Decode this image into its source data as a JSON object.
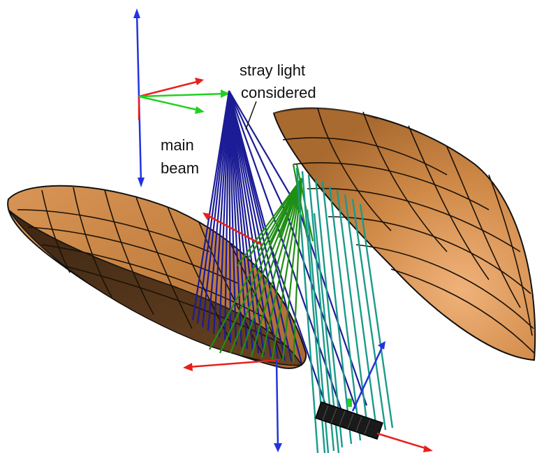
{
  "labels": {
    "stray_light_line1": "stray light",
    "stray_light_line2": "considered",
    "main_beam_line1": "main",
    "main_beam_line2": "beam"
  },
  "colors": {
    "mirror_light": "#e6a66a",
    "mirror_mid": "#c7803f",
    "mirror_dark": "#8a5424",
    "mirror_shadow": "#4a2f18",
    "main_rays": "#1c1c96",
    "stray_green": "#1f8f14",
    "stray_teal": "#1a9a8a",
    "axis_red": "#e8201a",
    "axis_green": "#22d022",
    "axis_blue": "#2233dd",
    "detector": "#1a1a1a"
  },
  "icons": {
    "coordinate_frame": "xyz-axes-icon",
    "mirror": "parabolic-mirror-icon",
    "detector": "detector-array-icon"
  }
}
